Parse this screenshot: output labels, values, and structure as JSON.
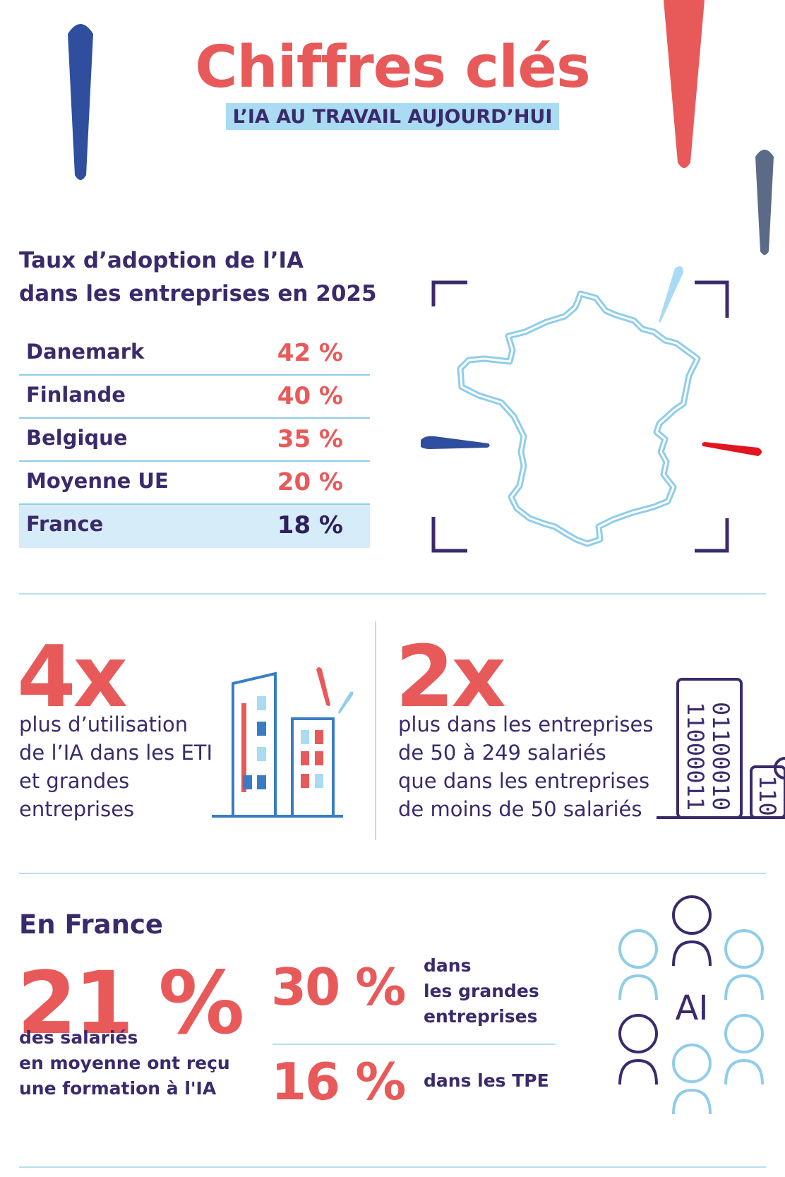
{
  "header": {
    "title": "Chiffres clés",
    "subtitle": "L’IA AU TRAVAIL AUJOURD’HUI"
  },
  "adoption": {
    "title_line1": "Taux d’adoption de l’IA",
    "title_line2": "dans les entreprises en 2025",
    "rows": [
      {
        "country": "Danemark",
        "percent": "42 %"
      },
      {
        "country": "Finlande",
        "percent": "40 %"
      },
      {
        "country": "Belgique",
        "percent": "35 %"
      },
      {
        "country": "Moyenne UE",
        "percent": "20 %"
      },
      {
        "country": "France",
        "percent": "18 %"
      }
    ]
  },
  "stats": {
    "s4x": {
      "value": "4x",
      "desc": [
        "plus d’utilisation",
        "de l’IA dans les ETI",
        "et grandes",
        "entreprises"
      ]
    },
    "s2x": {
      "value": "2x",
      "desc": [
        "plus dans les entreprises",
        "de 50 à 249 salariés",
        "que dans les entreprises",
        "de moins de 50 salariés"
      ],
      "binary": [
        "11000011",
        "01100010",
        "110"
      ]
    }
  },
  "france": {
    "title": "En France",
    "main_value": "21 %",
    "main_desc": [
      "des salariés",
      "en moyenne ont reçu",
      "une formation à l'IA"
    ],
    "s30": {
      "value": "30 %",
      "desc": [
        "dans",
        "les grandes",
        "entreprises"
      ]
    },
    "s16": {
      "value": "16 %",
      "desc": "dans les TPE"
    },
    "ai_label": "AI"
  },
  "colors": {
    "red": "#e85a5a",
    "navy": "#3b2a6b",
    "blue": "#2f4e9e",
    "light_blue": "#8fcdea",
    "slate": "#5b6a86"
  },
  "icons": [
    "france-map-icon",
    "buildings-icon",
    "binary-building-icon",
    "people-ai-icon"
  ]
}
